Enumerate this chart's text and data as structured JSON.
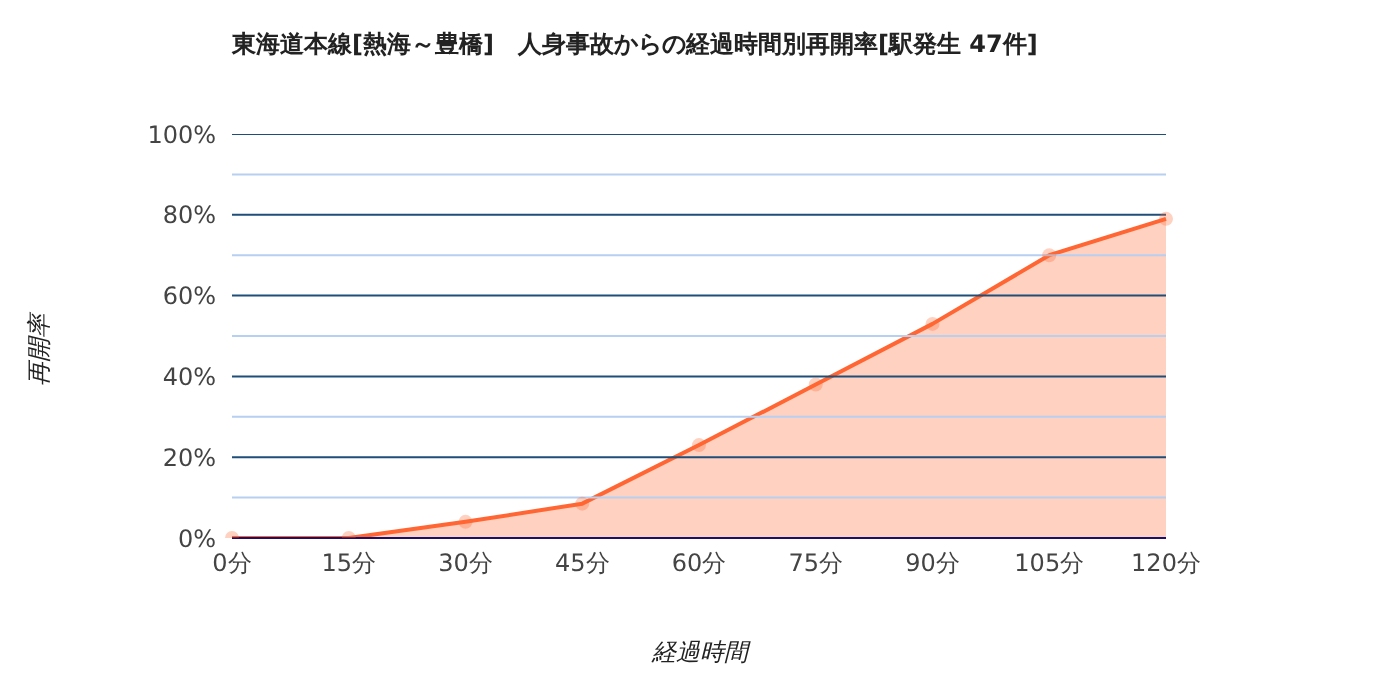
{
  "chart_data": {
    "type": "area",
    "title": "東海道本線[熱海～豊橋]　人身事故からの経過時間別再開率[駅発生 47件]",
    "xlabel": "経過時間",
    "ylabel": "再開率",
    "categories": [
      "0分",
      "15分",
      "30分",
      "45分",
      "60分",
      "75分",
      "90分",
      "105分",
      "120分"
    ],
    "series": [
      {
        "color": "#ff6633",
        "values": [
          0,
          0,
          4,
          8.5,
          23,
          38,
          53,
          70,
          79
        ]
      }
    ],
    "ylim": [
      0,
      100
    ],
    "yticks": [
      {
        "value": 0,
        "label": "0%"
      },
      {
        "value": 10,
        "label": null
      },
      {
        "value": 20,
        "label": "20%"
      },
      {
        "value": 30,
        "label": null
      },
      {
        "value": 40,
        "label": "40%"
      },
      {
        "value": 50,
        "label": null
      },
      {
        "value": 60,
        "label": "60%"
      },
      {
        "value": 70,
        "label": null
      },
      {
        "value": 80,
        "label": "80%"
      },
      {
        "value": 90,
        "label": null
      },
      {
        "value": 100,
        "label": "100%"
      }
    ],
    "grid": "y",
    "marker": "circle"
  }
}
